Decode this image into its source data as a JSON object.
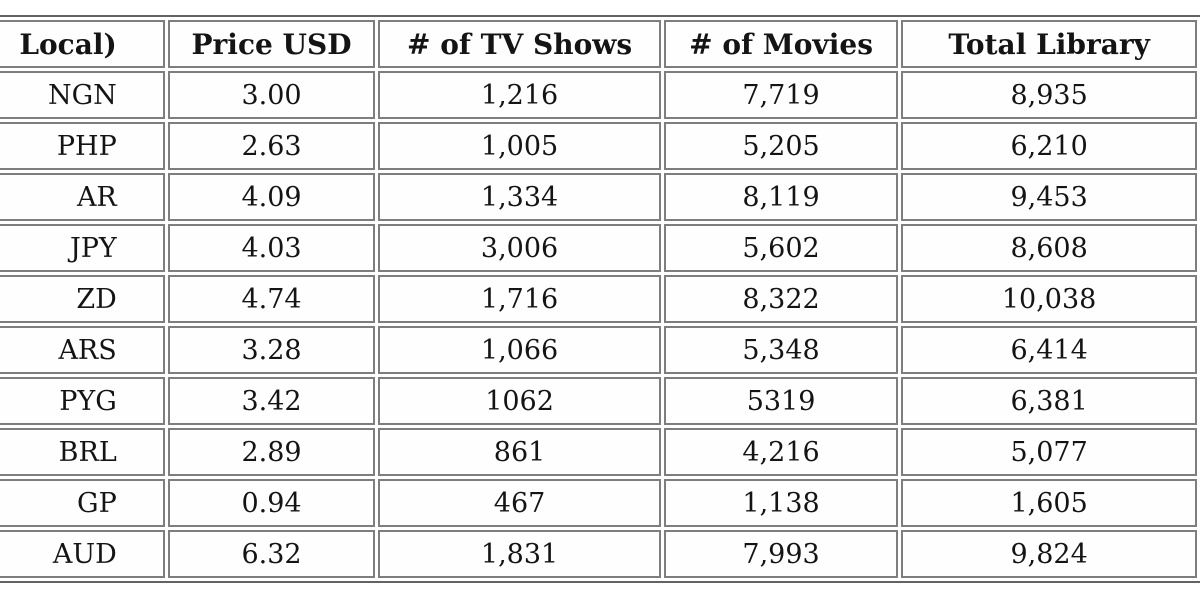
{
  "page": {
    "background_color": "#ffffff",
    "table_border_color": "#7e7e7e",
    "table_outer_border_color": "#636363",
    "text_color": "#141414"
  },
  "table": {
    "columns": [
      {
        "key": "local",
        "label": "Local)"
      },
      {
        "key": "price",
        "label": "Price USD"
      },
      {
        "key": "tv",
        "label": "# of TV Shows"
      },
      {
        "key": "movies",
        "label": "# of Movies"
      },
      {
        "key": "total",
        "label": "Total Library"
      }
    ],
    "rows": [
      [
        "NGN",
        "3.00",
        "1,216",
        "7,719",
        "8,935"
      ],
      [
        "PHP",
        "2.63",
        "1,005",
        "5,205",
        "6,210"
      ],
      [
        "AR",
        "4.09",
        "1,334",
        "8,119",
        "9,453"
      ],
      [
        "JPY",
        "4.03",
        "3,006",
        "5,602",
        "8,608"
      ],
      [
        "ZD",
        "4.74",
        "1,716",
        "8,322",
        "10,038"
      ],
      [
        "ARS",
        "3.28",
        "1,066",
        "5,348",
        "6,414"
      ],
      [
        "PYG",
        "3.42",
        "1062",
        "5319",
        "6,381"
      ],
      [
        "BRL",
        "2.89",
        "861",
        "4,216",
        "5,077"
      ],
      [
        "GP",
        "0.94",
        "467",
        "1,138",
        "1,605"
      ],
      [
        "AUD",
        "6.32",
        "1,831",
        "7,993",
        "9,824"
      ]
    ]
  },
  "chart_data": {
    "type": "table",
    "title": "",
    "columns": [
      "Local)",
      "Price USD",
      "# of TV Shows",
      "# of Movies",
      "Total Library"
    ],
    "rows": [
      [
        "NGN",
        "3.00",
        "1,216",
        "7,719",
        "8,935"
      ],
      [
        "PHP",
        "2.63",
        "1,005",
        "5,205",
        "6,210"
      ],
      [
        "AR",
        "4.09",
        "1,334",
        "8,119",
        "9,453"
      ],
      [
        "JPY",
        "4.03",
        "3,006",
        "5,602",
        "8,608"
      ],
      [
        "ZD",
        "4.74",
        "1,716",
        "8,322",
        "10,038"
      ],
      [
        "ARS",
        "3.28",
        "1,066",
        "5,348",
        "6,414"
      ],
      [
        "PYG",
        "3.42",
        "1062",
        "5319",
        "6,381"
      ],
      [
        "BRL",
        "2.89",
        "861",
        "4,216",
        "5,077"
      ],
      [
        "GP",
        "0.94",
        "467",
        "1,138",
        "1,605"
      ],
      [
        "AUD",
        "6.32",
        "1,831",
        "7,993",
        "9,824"
      ]
    ],
    "rows_numeric": [
      {
        "currency_fragment": "NGN",
        "price_usd": 3.0,
        "tv_shows": 1216,
        "movies": 7719,
        "total_library": 8935
      },
      {
        "currency_fragment": "PHP",
        "price_usd": 2.63,
        "tv_shows": 1005,
        "movies": 5205,
        "total_library": 6210
      },
      {
        "currency_fragment": "AR",
        "price_usd": 4.09,
        "tv_shows": 1334,
        "movies": 8119,
        "total_library": 9453
      },
      {
        "currency_fragment": "JPY",
        "price_usd": 4.03,
        "tv_shows": 3006,
        "movies": 5602,
        "total_library": 8608
      },
      {
        "currency_fragment": "ZD",
        "price_usd": 4.74,
        "tv_shows": 1716,
        "movies": 8322,
        "total_library": 10038
      },
      {
        "currency_fragment": "ARS",
        "price_usd": 3.28,
        "tv_shows": 1066,
        "movies": 5348,
        "total_library": 6414
      },
      {
        "currency_fragment": "PYG",
        "price_usd": 3.42,
        "tv_shows": 1062,
        "movies": 5319,
        "total_library": 6381
      },
      {
        "currency_fragment": "BRL",
        "price_usd": 2.89,
        "tv_shows": 861,
        "movies": 4216,
        "total_library": 5077
      },
      {
        "currency_fragment": "GP",
        "price_usd": 0.94,
        "tv_shows": 467,
        "movies": 1138,
        "total_library": 1605
      },
      {
        "currency_fragment": "AUD",
        "price_usd": 6.32,
        "tv_shows": 1831,
        "movies": 7993,
        "total_library": 9824
      }
    ]
  }
}
